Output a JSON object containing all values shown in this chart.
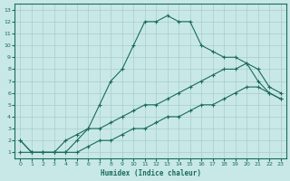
{
  "bg_color": "#c8e8e8",
  "grid_color": "#a8cccc",
  "line_color": "#1a6b5a",
  "xlabel": "Humidex (Indice chaleur)",
  "xlim": [
    -0.5,
    23.5
  ],
  "ylim": [
    0.5,
    13.5
  ],
  "xticks": [
    0,
    1,
    2,
    3,
    4,
    5,
    6,
    7,
    8,
    9,
    10,
    11,
    12,
    13,
    14,
    15,
    16,
    17,
    18,
    19,
    20,
    21,
    22,
    23
  ],
  "yticks": [
    1,
    2,
    3,
    4,
    5,
    6,
    7,
    8,
    9,
    10,
    11,
    12,
    13
  ],
  "line1_x": [
    0,
    1,
    2,
    3,
    4,
    5,
    6,
    7,
    8,
    9,
    10,
    11,
    12,
    13,
    14,
    15,
    16,
    17,
    18,
    19,
    20,
    21,
    22,
    23
  ],
  "line1_y": [
    2,
    1,
    1,
    1,
    1,
    2,
    3,
    5,
    7,
    8,
    10,
    12,
    12,
    12.5,
    12,
    12,
    10,
    9.5,
    9,
    9,
    8.5,
    7,
    6,
    5.5
  ],
  "line2_x": [
    0,
    1,
    2,
    3,
    4,
    5,
    6,
    7,
    8,
    9,
    10,
    11,
    12,
    13,
    14,
    15,
    16,
    17,
    18,
    19,
    20,
    21,
    22,
    23
  ],
  "line2_y": [
    2,
    1,
    1,
    1,
    2,
    2.5,
    3,
    3,
    3.5,
    4,
    4.5,
    5,
    5,
    5.5,
    6,
    6.5,
    7,
    7.5,
    8,
    8,
    8.5,
    8,
    6.5,
    6
  ],
  "line3_x": [
    0,
    1,
    2,
    3,
    4,
    5,
    6,
    7,
    8,
    9,
    10,
    11,
    12,
    13,
    14,
    15,
    16,
    17,
    18,
    19,
    20,
    21,
    22,
    23
  ],
  "line3_y": [
    1,
    1,
    1,
    1,
    1,
    1,
    1.5,
    2,
    2,
    2.5,
    3,
    3,
    3.5,
    4,
    4,
    4.5,
    5,
    5,
    5.5,
    6,
    6.5,
    6.5,
    6,
    5.5
  ]
}
